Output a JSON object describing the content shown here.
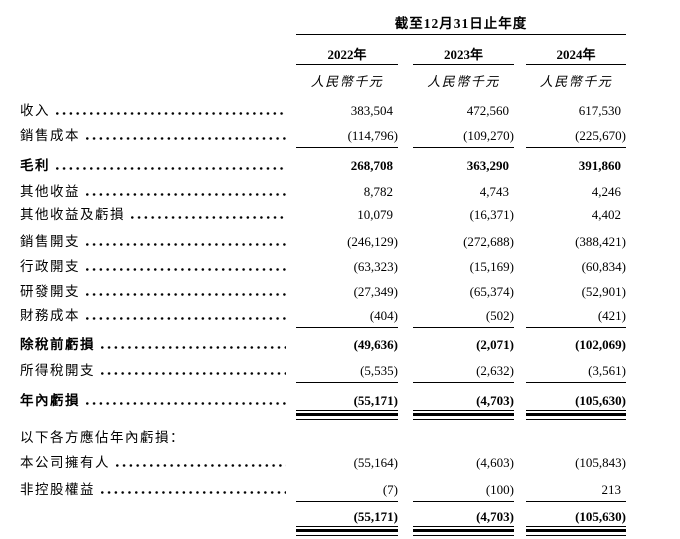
{
  "table": {
    "title": "截至12月31日止年度",
    "years": [
      "2022年",
      "2023年",
      "2024年"
    ],
    "unit": "人民幣千元",
    "rows": [
      {
        "label": "收入",
        "v": [
          "383,504",
          "472,560",
          "617,530"
        ]
      },
      {
        "label": "銷售成本",
        "v": [
          "(114,796)",
          "(109,270)",
          "(225,670)"
        ]
      },
      {
        "label": "毛利",
        "v": [
          "268,708",
          "363,290",
          "391,860"
        ]
      },
      {
        "label": "其他收益",
        "v": [
          "8,782",
          "4,743",
          "4,246"
        ]
      },
      {
        "label": "其他收益及虧損",
        "v": [
          "10,079",
          "(16,371)",
          "4,402"
        ]
      },
      {
        "label": "銷售開支",
        "v": [
          "(246,129)",
          "(272,688)",
          "(388,421)"
        ]
      },
      {
        "label": "行政開支",
        "v": [
          "(63,323)",
          "(15,169)",
          "(60,834)"
        ]
      },
      {
        "label": "研發開支",
        "v": [
          "(27,349)",
          "(65,374)",
          "(52,901)"
        ]
      },
      {
        "label": "財務成本",
        "v": [
          "(404)",
          "(502)",
          "(421)"
        ]
      },
      {
        "label": "除稅前虧損",
        "v": [
          "(49,636)",
          "(2,071)",
          "(102,069)"
        ]
      },
      {
        "label": "所得稅開支",
        "v": [
          "(5,535)",
          "(2,632)",
          "(3,561)"
        ]
      },
      {
        "label": "年內虧損",
        "v": [
          "(55,171)",
          "(4,703)",
          "(105,630)"
        ]
      },
      {
        "label": "以下各方應佔年內虧損："
      },
      {
        "label": "本公司擁有人",
        "v": [
          "(55,164)",
          "(4,603)",
          "(105,843)"
        ]
      },
      {
        "label": "非控股權益",
        "v": [
          "(7)",
          "(100)",
          "213"
        ]
      },
      {
        "label": "",
        "v": [
          "(55,171)",
          "(4,703)",
          "(105,630)"
        ]
      }
    ]
  }
}
